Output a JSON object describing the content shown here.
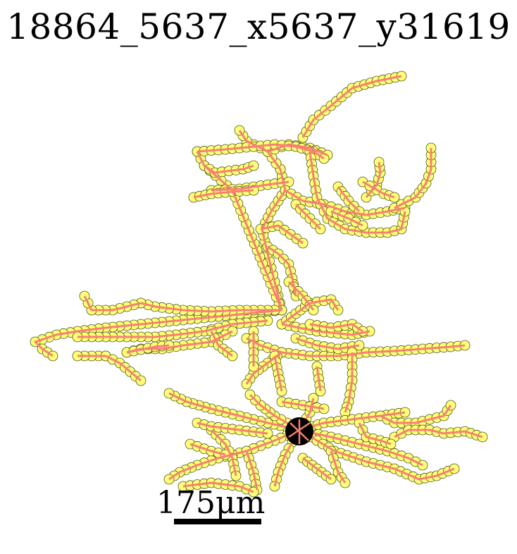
{
  "figure": {
    "title": "18864_5637_x5637_y31619",
    "scale_bar_label": "175μm"
  },
  "colors": {
    "edge": "#f97f73",
    "node_fill": "#ffff77",
    "node_stroke": "#555520",
    "soma": "#000000"
  }
}
